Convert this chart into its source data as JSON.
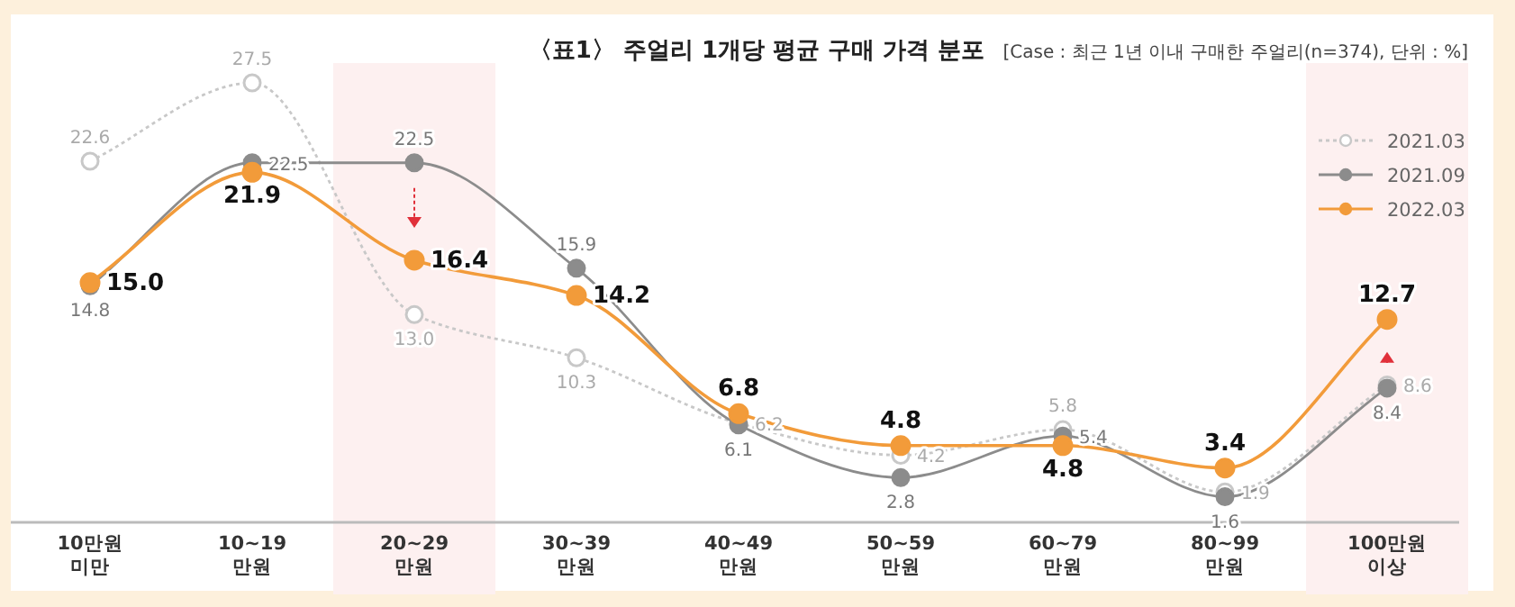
{
  "chart_data": {
    "type": "line",
    "title": "〈표1〉 주얼리 1개당 평균 구매 가격 분포",
    "subtitle": "[Case : 최근 1년 이내 구매한 주얼리(n=374), 단위 : %]",
    "categories": [
      "10만원 미만",
      "10~19 만원",
      "20~29 만원",
      "30~39 만원",
      "40~49 만원",
      "50~59 만원",
      "60~79 만원",
      "80~99 만원",
      "100만원 이상"
    ],
    "series": [
      {
        "name": "2021.03",
        "color": "#c8c8c8",
        "marker": "circle",
        "line_style": "dotted",
        "values": [
          22.6,
          27.5,
          13.0,
          10.3,
          6.2,
          4.2,
          5.8,
          1.9,
          8.6
        ],
        "value_labels": [
          "22.6",
          "27.5",
          "13.0",
          "10.3",
          "6.2",
          "4.2",
          "5.8",
          "1.9",
          "8.6"
        ]
      },
      {
        "name": "2021.09",
        "color": "#8c8c8c",
        "marker": "circle",
        "line_style": "solid",
        "values": [
          14.8,
          22.5,
          22.5,
          15.9,
          6.1,
          2.8,
          5.4,
          1.6,
          8.4
        ],
        "value_labels": [
          "14.8",
          "22.5",
          "22.5",
          "15.9",
          "6.1",
          "2.8",
          "5.4",
          "1.6",
          "8.4"
        ]
      },
      {
        "name": "2022.03",
        "color": "#f29b3a",
        "marker": "circle",
        "line_style": "solid",
        "values": [
          15.0,
          21.9,
          16.4,
          14.2,
          6.8,
          4.8,
          4.8,
          3.4,
          12.7
        ],
        "value_labels": [
          "15.0",
          "21.9",
          "16.4",
          "14.2",
          "6.8",
          "4.8",
          "4.8",
          "3.4",
          "12.7"
        ]
      }
    ],
    "bands": [
      {
        "axis": "x",
        "from": "20~29 만원",
        "to": "20~29 만원",
        "color": "#fdf0f0"
      },
      {
        "axis": "x",
        "from": "100만원 이상",
        "to": "100만원 이상",
        "color": "#fdf0f0"
      }
    ],
    "legend": "top right"
  }
}
